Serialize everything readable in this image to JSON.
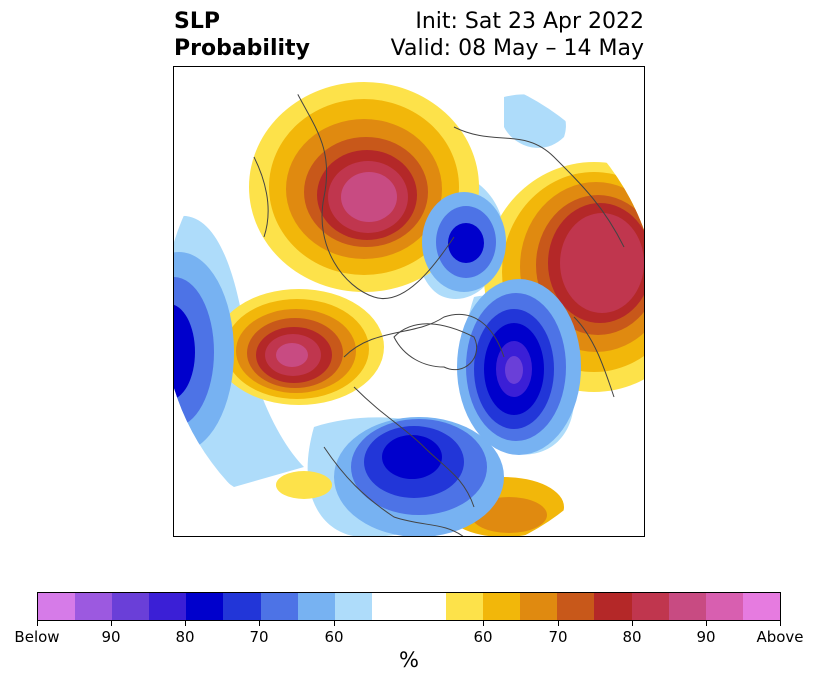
{
  "title": {
    "left_line1": "SLP",
    "left_line2": "Probability",
    "right_line1": "Init: Sat 23 Apr 2022",
    "right_line2": "Valid: 08 May – 14 May"
  },
  "map": {
    "projection": "north-polar-stereographic",
    "features": [
      {
        "name": "above-center-europe",
        "category": "above"
      },
      {
        "name": "above-center-east-siberia",
        "category": "above"
      },
      {
        "name": "above-center-north-pacific",
        "category": "above"
      },
      {
        "name": "below-center-north-atlantic",
        "category": "below"
      },
      {
        "name": "below-center-north-america",
        "category": "below"
      },
      {
        "name": "below-center-siberian-arctic",
        "category": "below"
      },
      {
        "name": "below-center-west-edge",
        "category": "below"
      }
    ]
  },
  "colorbar": {
    "colors": [
      "#d67be8",
      "#9c59e0",
      "#6a3fd8",
      "#3b1fd6",
      "#0000cc",
      "#2236d8",
      "#4d73e6",
      "#77b2f2",
      "#aedcfa",
      "#ffffff",
      "#ffffff",
      "#fde24a",
      "#f2b70a",
      "#e08a10",
      "#c8581a",
      "#b42828",
      "#c0364e",
      "#c84b82",
      "#d85fb0",
      "#e67be0"
    ],
    "ticks": [
      "Below",
      "90",
      "80",
      "70",
      "60",
      "60",
      "70",
      "80",
      "90",
      "Above"
    ],
    "unit": "%"
  }
}
